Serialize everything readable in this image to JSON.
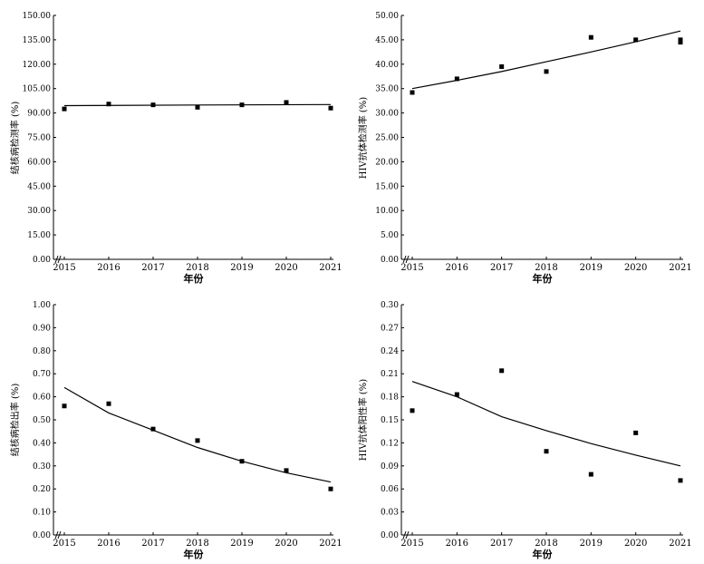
{
  "chart_data": [
    {
      "type": "scatter",
      "ylabel": "结核病检测率 (%)",
      "xlabel": "年份",
      "x_ticks": [
        "2015",
        "2016",
        "2017",
        "2018",
        "2019",
        "2020",
        "2021"
      ],
      "y_ticks": [
        "0.00",
        "15.00",
        "30.00",
        "45.00",
        "60.00",
        "75.00",
        "90.00",
        "105.00",
        "120.00",
        "135.00",
        "150.00"
      ],
      "ylim": [
        0,
        150
      ],
      "points": [
        {
          "x": 2015,
          "y": 92.5
        },
        {
          "x": 2016,
          "y": 95.5
        },
        {
          "x": 2017,
          "y": 95.0
        },
        {
          "x": 2018,
          "y": 93.5
        },
        {
          "x": 2019,
          "y": 95.0
        },
        {
          "x": 2020,
          "y": 96.5
        },
        {
          "x": 2021,
          "y": 93.0
        }
      ],
      "fit_line": [
        {
          "x": 2015,
          "y": 94.5
        },
        {
          "x": 2018,
          "y": 94.9
        },
        {
          "x": 2021,
          "y": 95.2
        }
      ]
    },
    {
      "type": "scatter",
      "ylabel": "HIV抗体检测率 (%)",
      "xlabel": "年份",
      "x_ticks": [
        "2015",
        "2016",
        "2017",
        "2018",
        "2019",
        "2020",
        "2021"
      ],
      "y_ticks": [
        "0.00",
        "5.00",
        "10.00",
        "15.00",
        "20.00",
        "25.00",
        "30.00",
        "35.00",
        "40.00",
        "45.00",
        "50.00"
      ],
      "ylim": [
        0,
        50
      ],
      "points": [
        {
          "x": 2015,
          "y": 34.2
        },
        {
          "x": 2016,
          "y": 37.0
        },
        {
          "x": 2017,
          "y": 39.5
        },
        {
          "x": 2018,
          "y": 38.5
        },
        {
          "x": 2019,
          "y": 45.5
        },
        {
          "x": 2020,
          "y": 45.0
        },
        {
          "x": 2021,
          "y": 44.5
        },
        {
          "x": 2021,
          "y": 45.0
        }
      ],
      "fit_line": [
        {
          "x": 2015,
          "y": 35.0
        },
        {
          "x": 2016,
          "y": 36.7
        },
        {
          "x": 2017,
          "y": 38.5
        },
        {
          "x": 2018,
          "y": 40.5
        },
        {
          "x": 2019,
          "y": 42.5
        },
        {
          "x": 2020,
          "y": 44.6
        },
        {
          "x": 2021,
          "y": 46.8
        }
      ]
    },
    {
      "type": "scatter",
      "ylabel": "结核病检出率 (%)",
      "xlabel": "年份",
      "x_ticks": [
        "2015",
        "2016",
        "2017",
        "2018",
        "2019",
        "2020",
        "2021"
      ],
      "y_ticks": [
        "0.00",
        "0.10",
        "0.20",
        "0.30",
        "0.40",
        "0.50",
        "0.60",
        "0.70",
        "0.80",
        "0.90",
        "1.00"
      ],
      "ylim": [
        0,
        1
      ],
      "points": [
        {
          "x": 2015,
          "y": 0.56
        },
        {
          "x": 2016,
          "y": 0.57
        },
        {
          "x": 2017,
          "y": 0.46
        },
        {
          "x": 2018,
          "y": 0.41
        },
        {
          "x": 2019,
          "y": 0.32
        },
        {
          "x": 2020,
          "y": 0.28
        },
        {
          "x": 2021,
          "y": 0.2
        }
      ],
      "fit_line": [
        {
          "x": 2015,
          "y": 0.64
        },
        {
          "x": 2016,
          "y": 0.53
        },
        {
          "x": 2017,
          "y": 0.455
        },
        {
          "x": 2018,
          "y": 0.38
        },
        {
          "x": 2019,
          "y": 0.32
        },
        {
          "x": 2020,
          "y": 0.27
        },
        {
          "x": 2021,
          "y": 0.23
        }
      ]
    },
    {
      "type": "scatter",
      "ylabel": "HIV抗体阳性率 (%)",
      "xlabel": "年份",
      "x_ticks": [
        "2015",
        "2016",
        "2017",
        "2018",
        "2019",
        "2020",
        "2021"
      ],
      "y_ticks": [
        "0.00",
        "0.03",
        "0.06",
        "0.09",
        "0.12",
        "0.15",
        "0.18",
        "0.21",
        "0.24",
        "0.27",
        "0.30"
      ],
      "ylim": [
        0,
        0.3
      ],
      "points": [
        {
          "x": 2015,
          "y": 0.162
        },
        {
          "x": 2016,
          "y": 0.183
        },
        {
          "x": 2017,
          "y": 0.214
        },
        {
          "x": 2018,
          "y": 0.109
        },
        {
          "x": 2019,
          "y": 0.079
        },
        {
          "x": 2020,
          "y": 0.133
        },
        {
          "x": 2021,
          "y": 0.071
        }
      ],
      "fit_line": [
        {
          "x": 2015,
          "y": 0.2
        },
        {
          "x": 2016,
          "y": 0.18
        },
        {
          "x": 2017,
          "y": 0.154
        },
        {
          "x": 2018,
          "y": 0.136
        },
        {
          "x": 2019,
          "y": 0.119
        },
        {
          "x": 2020,
          "y": 0.104
        },
        {
          "x": 2021,
          "y": 0.09
        }
      ]
    }
  ]
}
